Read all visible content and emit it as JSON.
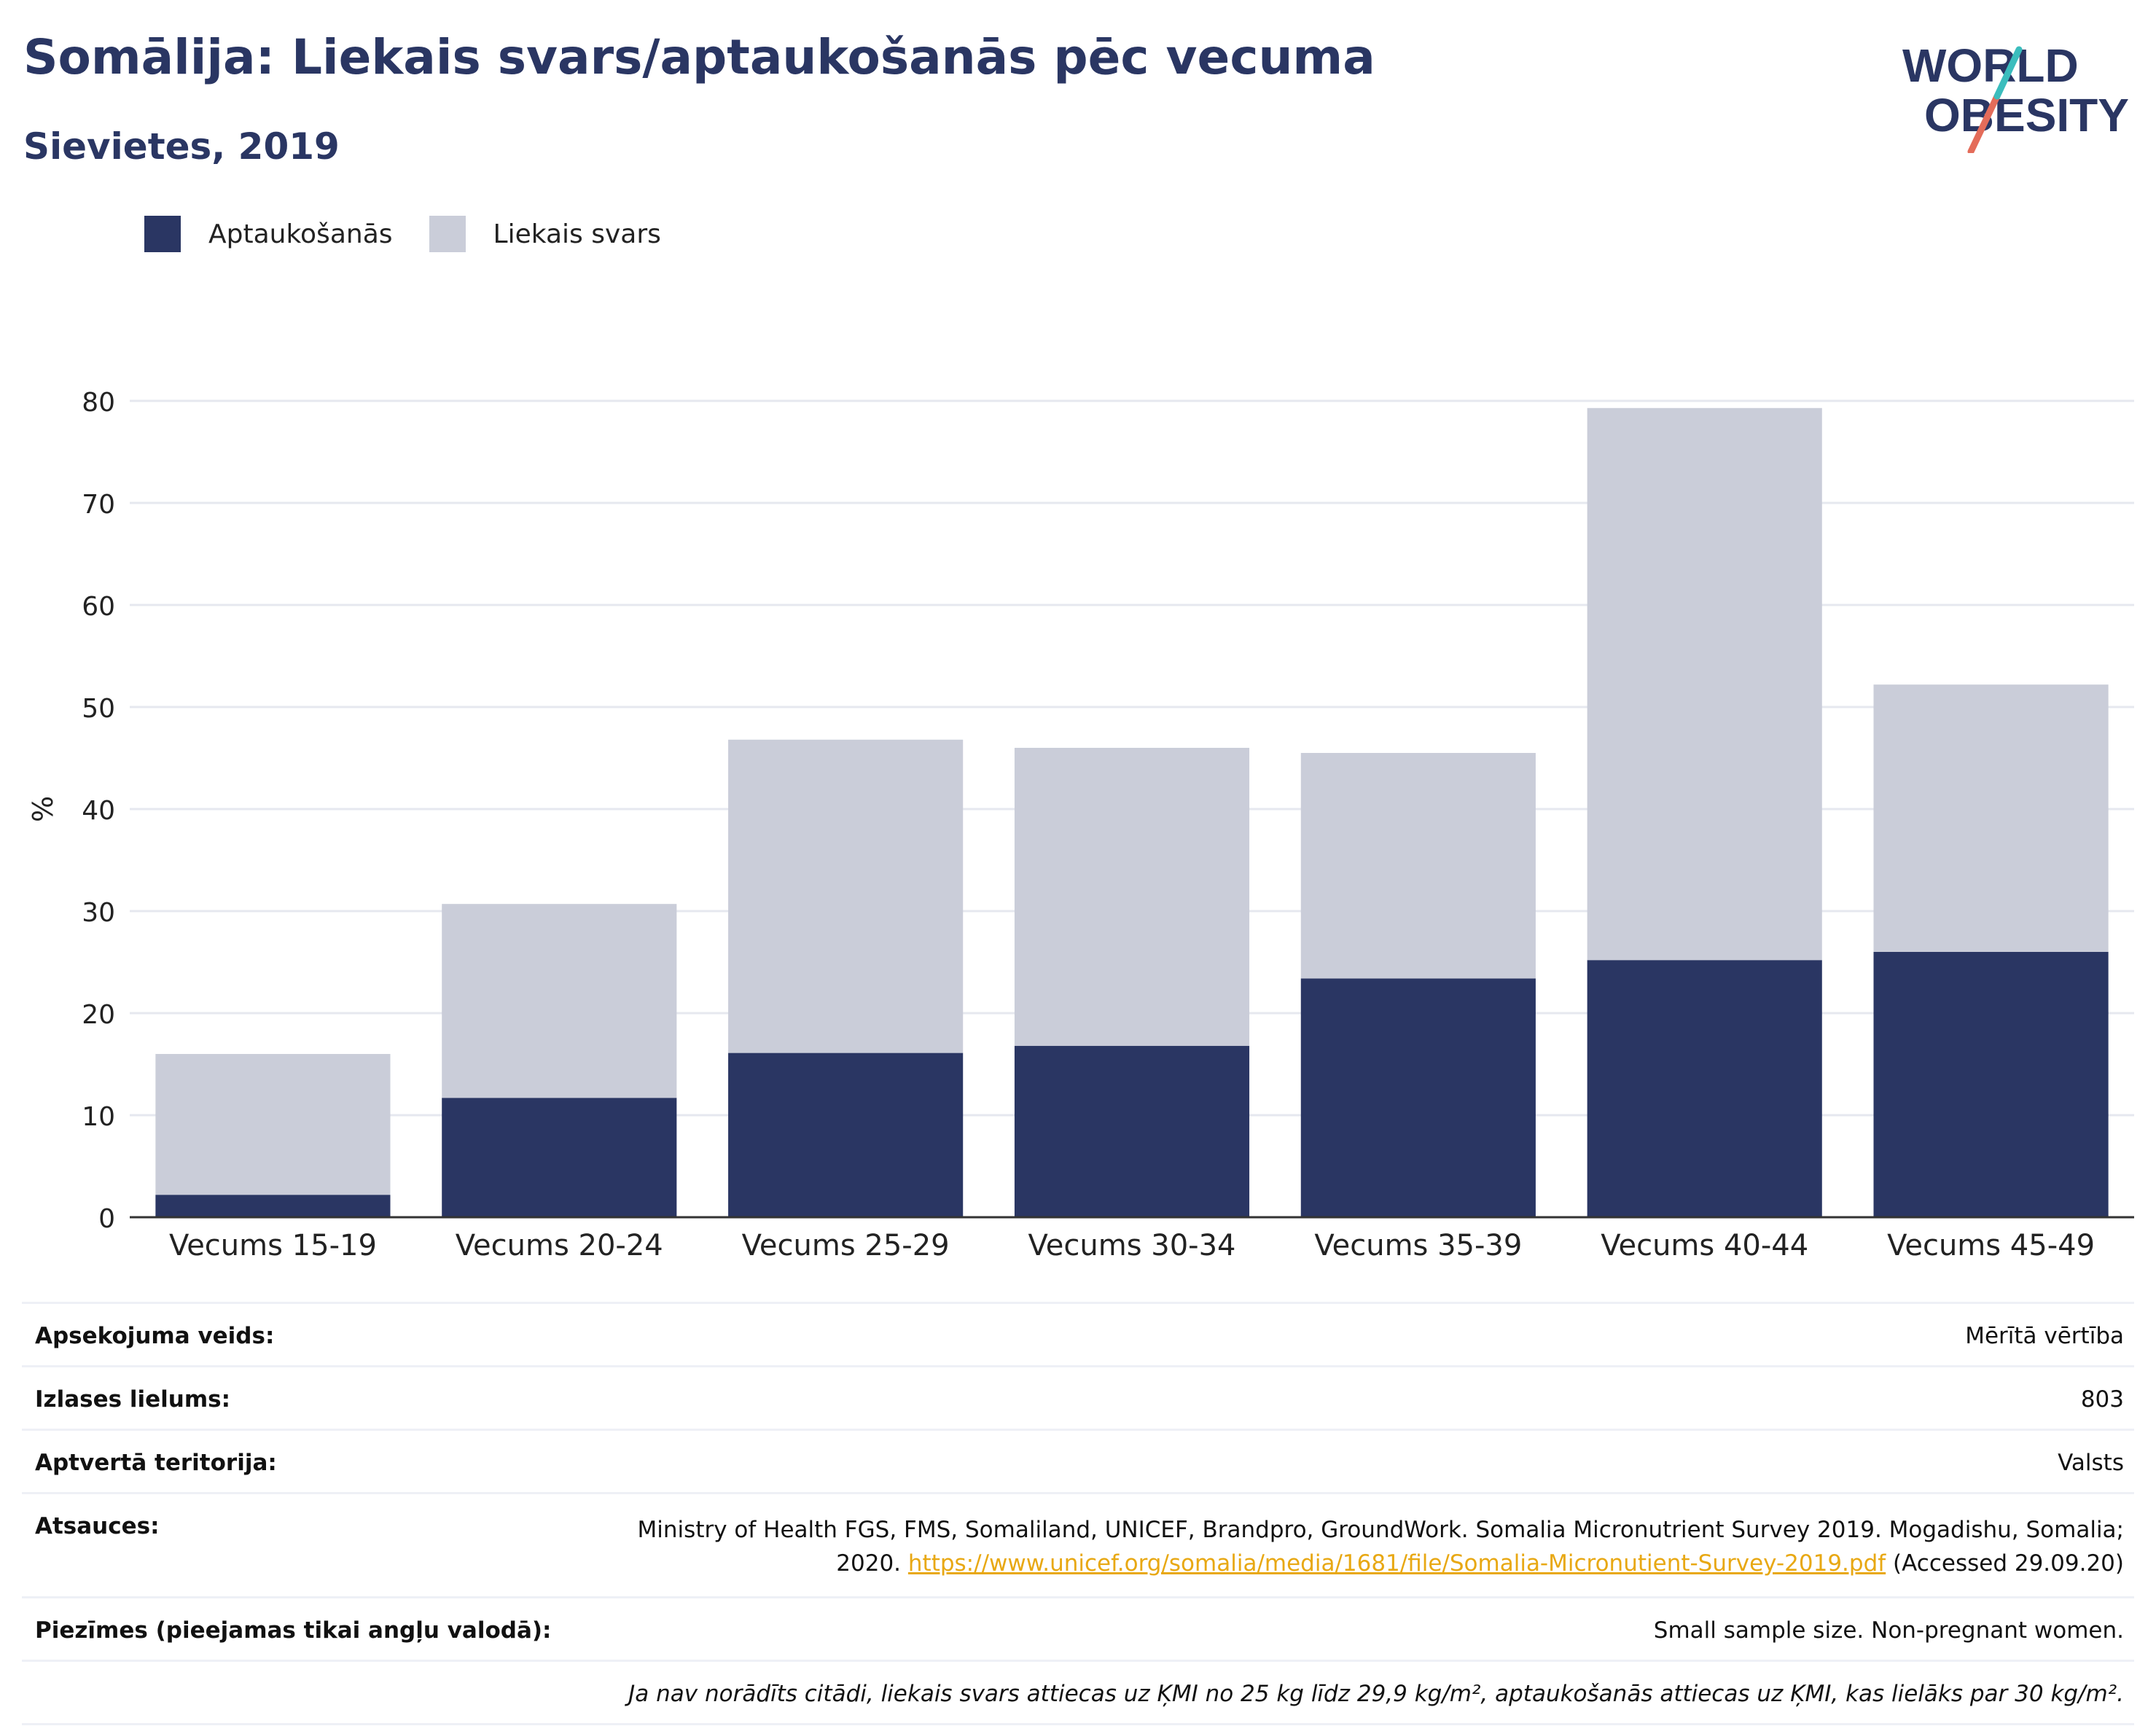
{
  "title": "Somālija: Liekais svars/aptaukošanās pēc vecuma",
  "subtitle": "Sievietes, 2019",
  "logo": {
    "line1": "WORLD",
    "line2": "OBESITY"
  },
  "colors": {
    "obesity": "#2a3663",
    "overweight": "#cacdd9",
    "accent_teal": "#3bbdbd",
    "accent_red": "#e46c5a",
    "link": "#e8a813"
  },
  "legend": [
    {
      "label": "Aptaukošanās",
      "color": "#2a3663"
    },
    {
      "label": "Liekais svars",
      "color": "#cacdd9"
    }
  ],
  "chart_data": {
    "type": "bar",
    "stacked": true,
    "ylabel": "%",
    "ylim": [
      0,
      80
    ],
    "yticks": [
      0,
      10,
      20,
      30,
      40,
      50,
      60,
      70,
      80
    ],
    "grid": true,
    "categories": [
      "Vecums 15-19",
      "Vecums 20-24",
      "Vecums 25-29",
      "Vecums 30-34",
      "Vecums 35-39",
      "Vecums 40-44",
      "Vecums 45-49"
    ],
    "series": [
      {
        "name": "Aptaukošanās",
        "values": [
          2.2,
          11.7,
          16.1,
          16.8,
          23.4,
          25.2,
          26.0
        ]
      },
      {
        "name": "Liekais svars",
        "values": [
          13.8,
          19.0,
          30.7,
          29.2,
          22.1,
          54.1,
          26.2
        ]
      }
    ]
  },
  "info": {
    "survey_type": {
      "label": "Apsekojuma veids:",
      "value": "Mērītā vērtība"
    },
    "sample_size": {
      "label": "Izlases lielums:",
      "value": "803"
    },
    "coverage": {
      "label": "Aptvertā teritorija:",
      "value": "Valsts"
    },
    "references": {
      "label": "Atsauces:",
      "text_before": "Ministry of Health FGS, FMS, Somaliland, UNICEF, Brandpro, GroundWork. Somalia Micronutrient Survey 2019. Mogadishu, Somalia; 2020.",
      "link": "https://www.unicef.org/somalia/media/1681/file/Somalia-Micronutient-Survey-2019.pdf",
      "text_after": "(Accessed 29.09.20)"
    },
    "notes": {
      "label": "Piezīmes (pieejamas tikai angļu valodā):",
      "value": "Small sample size. Non-pregnant women."
    },
    "footnote": "Ja nav norādīts citādi, liekais svars attiecas uz ĶMI no 25 kg līdz 29,9 kg/m², aptaukošanās attiecas uz ĶMI, kas lielāks par 30 kg/m²."
  }
}
